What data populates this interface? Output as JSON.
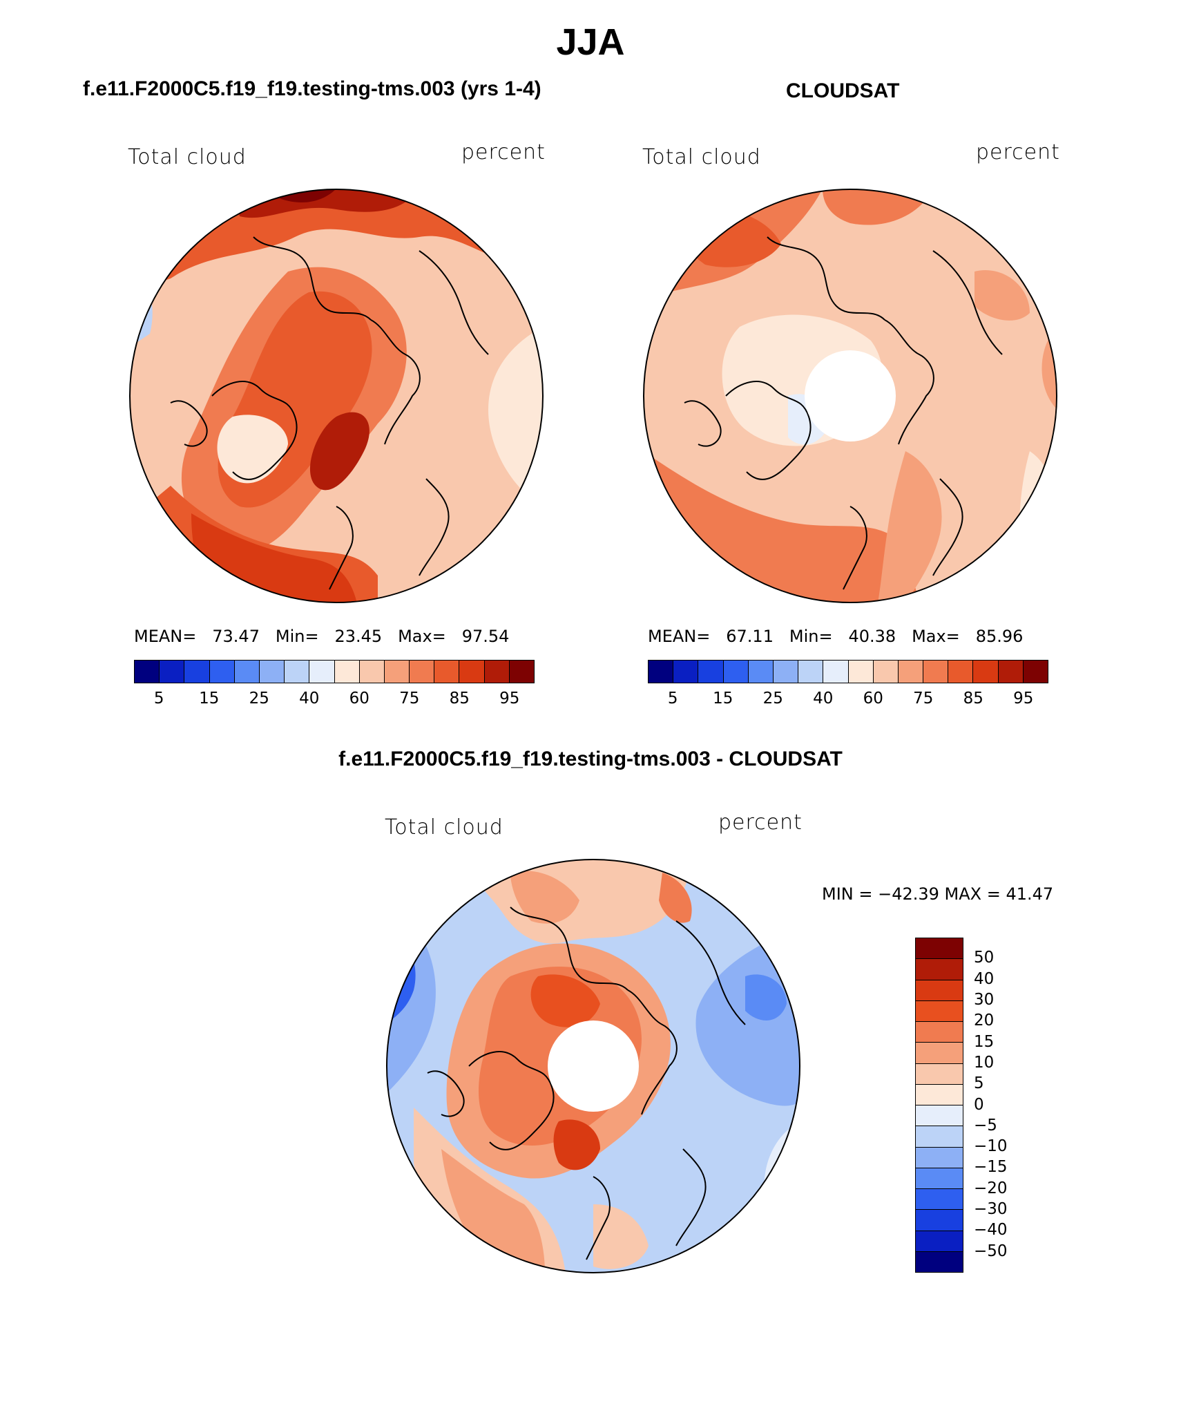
{
  "title": "JJA",
  "panels": [
    {
      "title": "f.e11.F2000C5.f19_f19.testing-tms.003 (yrs 1-4)",
      "variable": "Total cloud",
      "units": "percent",
      "stats": {
        "mean_label": "MEAN=",
        "mean": "73.47",
        "min_label": "Min=",
        "min": "23.45",
        "max_label": "Max=",
        "max": "97.54"
      },
      "colorbar_ticks": [
        "5",
        "15",
        "25",
        "40",
        "60",
        "75",
        "85",
        "95"
      ]
    },
    {
      "title": "CLOUDSAT",
      "variable": "Total cloud",
      "units": "percent",
      "stats": {
        "mean_label": "MEAN=",
        "mean": "67.11",
        "min_label": "Min=",
        "min": "40.38",
        "max_label": "Max=",
        "max": "85.96"
      },
      "colorbar_ticks": [
        "5",
        "15",
        "25",
        "40",
        "60",
        "75",
        "85",
        "95"
      ]
    }
  ],
  "diff": {
    "title": "f.e11.F2000C5.f19_f19.testing-tms.003 - CLOUDSAT",
    "variable": "Total cloud",
    "units": "percent",
    "minmax": "MIN = −42.39 MAX =   41.47",
    "colorbar_ticks": [
      "50",
      "40",
      "30",
      "20",
      "15",
      "10",
      "5",
      "0",
      "−5",
      "−10",
      "−15",
      "−20",
      "−30",
      "−40",
      "−50"
    ]
  },
  "colors": {
    "seq_scale": [
      "#00007f",
      "#0a1fc2",
      "#1840e0",
      "#2e5ff0",
      "#5a8bf5",
      "#8db0f5",
      "#bcd3f7",
      "#e6eefb",
      "#fde8d8",
      "#f9c8ad",
      "#f5a07a",
      "#f07b50",
      "#e85a2c",
      "#d93a12",
      "#b01c08",
      "#7d0202"
    ],
    "diff_scale": [
      "#7d0202",
      "#b01c08",
      "#d93a12",
      "#e8501f",
      "#f07b50",
      "#f5a07a",
      "#f9c8ad",
      "#fde8d8",
      "#e6eefb",
      "#bcd3f7",
      "#8db0f5",
      "#5a8bf5",
      "#2e5ff0",
      "#1840e0",
      "#0a1fc2",
      "#00007f"
    ]
  }
}
